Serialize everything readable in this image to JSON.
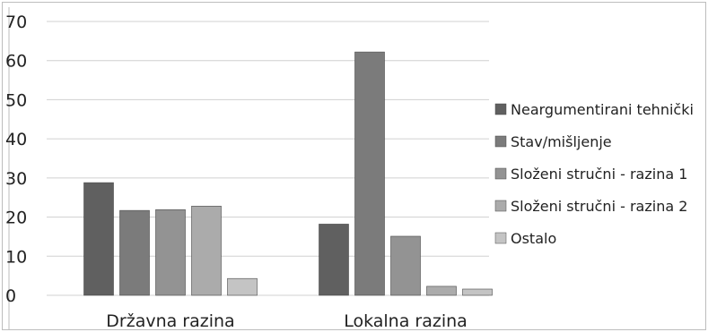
{
  "chart_data": {
    "type": "bar",
    "categories": [
      "Državna razina",
      "Lokalna razina"
    ],
    "series": [
      {
        "name": "Neargumentirani tehnički",
        "values": [
          28.8,
          18.2
        ],
        "color": "#606060"
      },
      {
        "name": "Stav/mišljenje",
        "values": [
          21.7,
          62.2
        ],
        "color": "#7b7b7b"
      },
      {
        "name": "Složeni stručni - razina 1",
        "values": [
          21.9,
          15.1
        ],
        "color": "#939393"
      },
      {
        "name": "Složeni stručni - razina 2",
        "values": [
          22.8,
          2.3
        ],
        "color": "#ababab"
      },
      {
        "name": "Ostalo",
        "values": [
          4.3,
          1.6
        ],
        "color": "#c4c4c4"
      }
    ],
    "ylim": [
      0,
      70
    ],
    "yticks": [
      0,
      10,
      20,
      30,
      40,
      50,
      60,
      70
    ],
    "grid": true,
    "legend_position": "right"
  }
}
